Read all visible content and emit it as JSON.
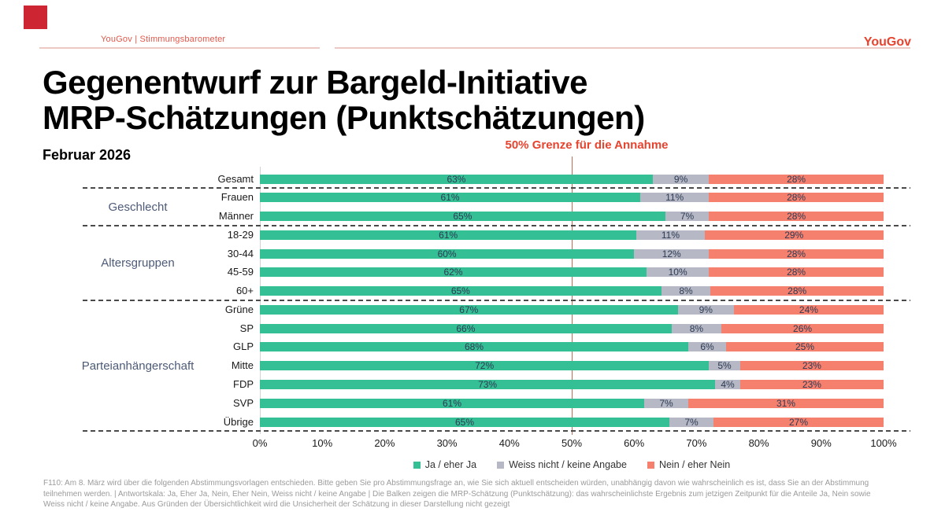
{
  "header": {
    "breadcrumb": "YouGov | Stimmungsbarometer",
    "logo": "YouGov"
  },
  "title": {
    "line1": "Gegenentwurf zur Bargeld-Initiative",
    "line2": "MRP-Schätzungen (Punktschätzungen)"
  },
  "date_label": "Februar 2026",
  "annotation": {
    "label": "50% Grenze für die Annahme",
    "threshold_pct": 50
  },
  "chart_data": {
    "type": "bar",
    "orientation": "horizontal",
    "stacked": true,
    "unit": "%",
    "series_names": [
      "Ja / eher Ja",
      "Weiss nicht / keine Angabe",
      "Nein / eher Nein"
    ],
    "series_colors": [
      "#35BF95",
      "#B6B9C5",
      "#F5806E"
    ],
    "x_axis": {
      "min": 0,
      "max": 100,
      "tick_labels": [
        "0%",
        "10%",
        "20%",
        "30%",
        "40%",
        "50%",
        "60%",
        "70%",
        "80%",
        "90%",
        "100%"
      ]
    },
    "threshold_line": {
      "value": 50,
      "label": "50% Grenze für die Annahme",
      "color": "#C06A52"
    },
    "legend_position": "bottom",
    "grid": false,
    "groups": [
      {
        "label": "",
        "rows": [
          {
            "label": "Gesamt",
            "values": [
              63,
              9,
              28
            ]
          }
        ]
      },
      {
        "label": "Geschlecht",
        "rows": [
          {
            "label": "Frauen",
            "values": [
              61,
              11,
              28
            ]
          },
          {
            "label": "Männer",
            "values": [
              65,
              7,
              28
            ]
          }
        ]
      },
      {
        "label": "Altersgruppen",
        "rows": [
          {
            "label": "18-29",
            "values": [
              61,
              11,
              29
            ]
          },
          {
            "label": "30-44",
            "values": [
              60,
              12,
              28
            ]
          },
          {
            "label": "45-59",
            "values": [
              62,
              10,
              28
            ]
          },
          {
            "label": "60+",
            "values": [
              65,
              8,
              28
            ]
          }
        ]
      },
      {
        "label": "Parteianhängerschaft",
        "rows": [
          {
            "label": "Grüne",
            "values": [
              67,
              9,
              24
            ]
          },
          {
            "label": "SP",
            "values": [
              66,
              8,
              26
            ]
          },
          {
            "label": "GLP",
            "values": [
              68,
              6,
              25
            ]
          },
          {
            "label": "Mitte",
            "values": [
              72,
              5,
              23
            ]
          },
          {
            "label": "FDP",
            "values": [
              73,
              4,
              23
            ]
          },
          {
            "label": "SVP",
            "values": [
              61,
              7,
              31
            ]
          },
          {
            "label": "Übrige",
            "values": [
              65,
              7,
              27
            ]
          }
        ]
      }
    ]
  },
  "colors": {
    "accent_red": "#E8432E",
    "brand_square": "#CD2532",
    "value_label": "#2D3A53",
    "group_label": "#4D5B77",
    "separator": "#4A4A4A"
  },
  "footnote": "F110: Am 8. März wird über die folgenden Abstimmungsvorlagen entschieden. Bitte geben Sie pro Abstimmungsfrage an, wie Sie sich aktuell entscheiden würden, unabhängig davon wie wahrscheinlich es ist, dass Sie an der Abstimmung teilnehmen werden. | Antwortskala: Ja, Eher Ja, Nein, Eher Nein, Weiss nicht / keine Angabe | Die Balken zeigen die MRP-Schätzung (Punktschätzung): das wahrscheinlichste Ergebnis zum jetzigen Zeitpunkt für die Anteile Ja, Nein sowie Weiss nicht / keine Angabe. Aus Gründen der Übersichtlichkeit wird die Unsicherheit der Schätzung in dieser Darstellung nicht gezeigt"
}
